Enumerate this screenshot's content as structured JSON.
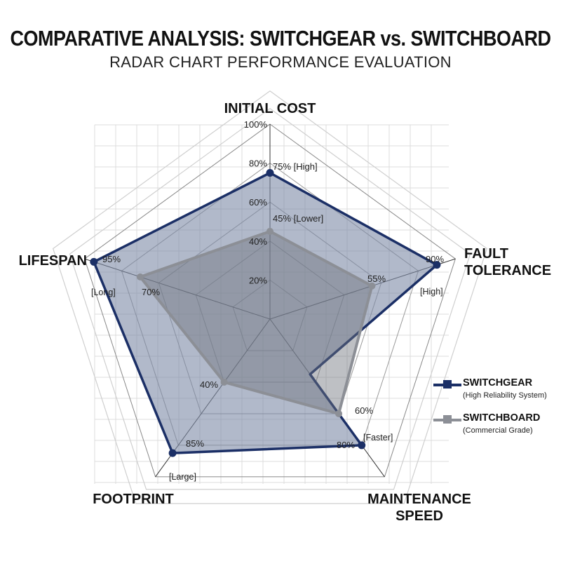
{
  "title": "COMPARATIVE ANALYSIS: SWITCHGEAR vs. SWITCHBOARD",
  "subtitle": "RADAR CHART PERFORMANCE EVALUATION",
  "colors": {
    "switchgear": "#1b2f66",
    "switchboard": "#8c8f96",
    "fill_switchgear": "#7d8aa6",
    "fill_switchboard": "#6e737c"
  },
  "chart_data": {
    "type": "radar",
    "axes": [
      "INITIAL COST",
      "FAULT TOLERANCE",
      "MAINTENANCE SPEED",
      "FOOTPRINT",
      "LIFESPAN"
    ],
    "rlim": [
      0,
      100
    ],
    "ticks": [
      20,
      40,
      60,
      80,
      100
    ],
    "tick_labels": [
      "20%",
      "40%",
      "60%",
      "80%",
      "100%"
    ],
    "grid": true,
    "legend_position": "right",
    "series": [
      {
        "name": "SWITCHGEAR",
        "description": "(High Reliability System)",
        "values": [
          75,
          90,
          80,
          85,
          95
        ],
        "notch": 35,
        "point_labels": [
          "75% [High]",
          "90%",
          "80%",
          "85%",
          "95%"
        ]
      },
      {
        "name": "SWITCHBOARD",
        "description": "(Commercial Grade)",
        "values": [
          45,
          55,
          60,
          40,
          70
        ],
        "point_labels": [
          "45% [Lower]",
          "55%",
          "60%",
          "40%",
          "70%"
        ]
      }
    ],
    "qualifiers": [
      "[High]",
      "[Faster]",
      "[Large]",
      "[Long]"
    ]
  }
}
